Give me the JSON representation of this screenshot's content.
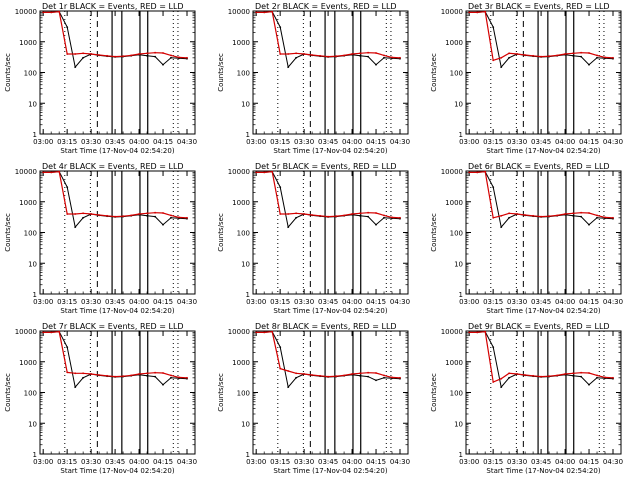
{
  "common": {
    "ylabel": "Counts/sec",
    "xlabel": "Start Time (17-Nov-04 02:54:20)",
    "ytick_labels": [
      "10000",
      "1000",
      "100",
      "10",
      "1"
    ],
    "xtick_labels": [
      "03:00",
      "03:15",
      "03:30",
      "03:45",
      "04:00",
      "04:15",
      "04:30"
    ],
    "colors": {
      "events": "#000000",
      "lld": "#d40000"
    }
  },
  "chart_data": [
    {
      "type": "line",
      "title": "Det 1r BLACK = Events, RED = LLD",
      "xlabel": "Start Time (17-Nov-04 02:54:20)",
      "ylabel": "Counts/sec",
      "yscale": "log",
      "ylim": [
        1,
        10000
      ],
      "xlim": [
        "02:58",
        "04:35"
      ],
      "x": [
        "03:00",
        "03:05",
        "03:10",
        "03:15",
        "03:20",
        "03:25",
        "03:30",
        "03:35",
        "03:40",
        "03:45",
        "03:50",
        "03:55",
        "04:00",
        "04:05",
        "04:10",
        "04:15",
        "04:20",
        "04:25",
        "04:30"
      ],
      "series": [
        {
          "name": "BLACK = Events",
          "values": [
            9000,
            9000,
            9500,
            3000,
            150,
            300,
            400,
            360,
            340,
            320,
            330,
            350,
            380,
            350,
            330,
            180,
            300,
            290,
            280
          ]
        },
        {
          "name": "RED = LLD",
          "values": [
            9000,
            9000,
            9500,
            400,
            400,
            420,
            400,
            370,
            350,
            330,
            340,
            360,
            400,
            420,
            440,
            430,
            360,
            310,
            300
          ]
        }
      ]
    },
    {
      "type": "line",
      "title": "Det 2r BLACK = Events, RED = LLD",
      "xlabel": "Start Time (17-Nov-04 02:54:20)",
      "ylabel": "Counts/sec",
      "yscale": "log",
      "ylim": [
        1,
        10000
      ],
      "xlim": [
        "02:58",
        "04:35"
      ],
      "x": [
        "03:00",
        "03:05",
        "03:10",
        "03:15",
        "03:20",
        "03:25",
        "03:30",
        "03:35",
        "03:40",
        "03:45",
        "03:50",
        "03:55",
        "04:00",
        "04:05",
        "04:10",
        "04:15",
        "04:20",
        "04:25",
        "04:30"
      ],
      "series": [
        {
          "name": "BLACK = Events",
          "values": [
            9000,
            9000,
            9500,
            3000,
            150,
            300,
            400,
            360,
            340,
            320,
            330,
            350,
            380,
            350,
            330,
            180,
            300,
            290,
            280
          ]
        },
        {
          "name": "RED = LLD",
          "values": [
            9000,
            9000,
            9500,
            400,
            400,
            420,
            400,
            370,
            350,
            330,
            340,
            360,
            400,
            420,
            440,
            430,
            360,
            310,
            300
          ]
        }
      ]
    },
    {
      "type": "line",
      "title": "Det 3r BLACK = Events, RED = LLD",
      "xlabel": "Start Time (17-Nov-04 02:54:20)",
      "ylabel": "Counts/sec",
      "yscale": "log",
      "ylim": [
        1,
        10000
      ],
      "xlim": [
        "02:58",
        "04:35"
      ],
      "x": [
        "03:00",
        "03:05",
        "03:10",
        "03:15",
        "03:20",
        "03:25",
        "03:30",
        "03:35",
        "03:40",
        "03:45",
        "03:50",
        "03:55",
        "04:00",
        "04:05",
        "04:10",
        "04:15",
        "04:20",
        "04:25",
        "04:30"
      ],
      "series": [
        {
          "name": "BLACK = Events",
          "values": [
            9000,
            9000,
            9500,
            3000,
            150,
            300,
            400,
            360,
            340,
            320,
            330,
            350,
            380,
            350,
            330,
            180,
            300,
            290,
            280
          ]
        },
        {
          "name": "RED = LLD",
          "values": [
            9000,
            9000,
            9500,
            250,
            300,
            420,
            400,
            370,
            350,
            330,
            340,
            360,
            400,
            420,
            440,
            430,
            360,
            310,
            300
          ]
        }
      ]
    },
    {
      "type": "line",
      "title": "Det 4r BLACK = Events, RED = LLD",
      "xlabel": "Start Time (17-Nov-04 02:54:20)",
      "ylabel": "Counts/sec",
      "yscale": "log",
      "ylim": [
        1,
        10000
      ],
      "xlim": [
        "02:58",
        "04:35"
      ],
      "x": [
        "03:00",
        "03:05",
        "03:10",
        "03:15",
        "03:20",
        "03:25",
        "03:30",
        "03:35",
        "03:40",
        "03:45",
        "03:50",
        "03:55",
        "04:00",
        "04:05",
        "04:10",
        "04:15",
        "04:20",
        "04:25",
        "04:30"
      ],
      "series": [
        {
          "name": "BLACK = Events",
          "values": [
            9000,
            9000,
            9500,
            3000,
            150,
            300,
            400,
            360,
            340,
            320,
            330,
            350,
            380,
            350,
            330,
            180,
            300,
            290,
            280
          ]
        },
        {
          "name": "RED = LLD",
          "values": [
            9000,
            9000,
            9500,
            400,
            400,
            420,
            400,
            370,
            350,
            330,
            340,
            360,
            400,
            420,
            440,
            430,
            360,
            310,
            300
          ]
        }
      ]
    },
    {
      "type": "line",
      "title": "Det 5r BLACK = Events, RED = LLD",
      "xlabel": "Start Time (17-Nov-04 02:54:20)",
      "ylabel": "Counts/sec",
      "yscale": "log",
      "ylim": [
        1,
        10000
      ],
      "xlim": [
        "02:58",
        "04:35"
      ],
      "x": [
        "03:00",
        "03:05",
        "03:10",
        "03:15",
        "03:20",
        "03:25",
        "03:30",
        "03:35",
        "03:40",
        "03:45",
        "03:50",
        "03:55",
        "04:00",
        "04:05",
        "04:10",
        "04:15",
        "04:20",
        "04:25",
        "04:30"
      ],
      "series": [
        {
          "name": "BLACK = Events",
          "values": [
            9000,
            9000,
            9500,
            3000,
            150,
            300,
            400,
            360,
            340,
            320,
            330,
            350,
            380,
            350,
            330,
            180,
            300,
            290,
            280
          ]
        },
        {
          "name": "RED = LLD",
          "values": [
            9000,
            9000,
            9500,
            400,
            400,
            420,
            400,
            370,
            350,
            330,
            340,
            360,
            400,
            420,
            440,
            430,
            360,
            310,
            300
          ]
        }
      ]
    },
    {
      "type": "line",
      "title": "Det 6r BLACK = Events, RED = LLD",
      "xlabel": "Start Time (17-Nov-04 02:54:20)",
      "ylabel": "Counts/sec",
      "yscale": "log",
      "ylim": [
        1,
        10000
      ],
      "xlim": [
        "02:58",
        "04:35"
      ],
      "x": [
        "03:00",
        "03:05",
        "03:10",
        "03:15",
        "03:20",
        "03:25",
        "03:30",
        "03:35",
        "03:40",
        "03:45",
        "03:50",
        "03:55",
        "04:00",
        "04:05",
        "04:10",
        "04:15",
        "04:20",
        "04:25",
        "04:30"
      ],
      "series": [
        {
          "name": "BLACK = Events",
          "values": [
            9000,
            9000,
            9500,
            3000,
            150,
            300,
            400,
            360,
            340,
            320,
            330,
            350,
            380,
            350,
            330,
            180,
            300,
            290,
            280
          ]
        },
        {
          "name": "RED = LLD",
          "values": [
            9000,
            9000,
            9500,
            300,
            350,
            420,
            400,
            370,
            350,
            330,
            340,
            360,
            400,
            420,
            440,
            430,
            360,
            310,
            300
          ]
        }
      ]
    },
    {
      "type": "line",
      "title": "Det 7r BLACK = Events, RED = LLD",
      "xlabel": "Start Time (17-Nov-04 02:54:20)",
      "ylabel": "Counts/sec",
      "yscale": "log",
      "ylim": [
        1,
        10000
      ],
      "xlim": [
        "02:58",
        "04:35"
      ],
      "x": [
        "03:00",
        "03:05",
        "03:10",
        "03:15",
        "03:20",
        "03:25",
        "03:30",
        "03:35",
        "03:40",
        "03:45",
        "03:50",
        "03:55",
        "04:00",
        "04:05",
        "04:10",
        "04:15",
        "04:20",
        "04:25",
        "04:30"
      ],
      "series": [
        {
          "name": "BLACK = Events",
          "values": [
            9000,
            9000,
            9500,
            3000,
            150,
            300,
            400,
            360,
            340,
            320,
            330,
            350,
            380,
            350,
            330,
            180,
            300,
            290,
            280
          ]
        },
        {
          "name": "RED = LLD",
          "values": [
            9000,
            9000,
            9500,
            450,
            420,
            420,
            400,
            370,
            350,
            330,
            340,
            360,
            400,
            420,
            440,
            430,
            360,
            310,
            300
          ]
        }
      ]
    },
    {
      "type": "line",
      "title": "Det 8r BLACK = Events, RED = LLD",
      "xlabel": "Start Time (17-Nov-04 02:54:20)",
      "ylabel": "Counts/sec",
      "yscale": "log",
      "ylim": [
        1,
        10000
      ],
      "xlim": [
        "02:58",
        "04:35"
      ],
      "x": [
        "03:00",
        "03:05",
        "03:10",
        "03:15",
        "03:20",
        "03:25",
        "03:30",
        "03:35",
        "03:40",
        "03:45",
        "03:50",
        "03:55",
        "04:00",
        "04:05",
        "04:10",
        "04:15",
        "04:20",
        "04:25",
        "04:30"
      ],
      "series": [
        {
          "name": "BLACK = Events",
          "values": [
            9000,
            9000,
            9500,
            3000,
            150,
            300,
            400,
            360,
            340,
            320,
            330,
            350,
            380,
            350,
            330,
            250,
            300,
            290,
            280
          ]
        },
        {
          "name": "RED = LLD",
          "values": [
            9000,
            9000,
            9500,
            600,
            500,
            420,
            400,
            370,
            350,
            330,
            340,
            360,
            400,
            420,
            440,
            430,
            360,
            310,
            300
          ]
        }
      ]
    },
    {
      "type": "line",
      "title": "Det 9r BLACK = Events, RED = LLD",
      "xlabel": "Start Time (17-Nov-04 02:54:20)",
      "ylabel": "Counts/sec",
      "yscale": "log",
      "ylim": [
        1,
        10000
      ],
      "xlim": [
        "02:58",
        "04:35"
      ],
      "x": [
        "03:00",
        "03:05",
        "03:10",
        "03:15",
        "03:20",
        "03:25",
        "03:30",
        "03:35",
        "03:40",
        "03:45",
        "03:50",
        "03:55",
        "04:00",
        "04:05",
        "04:10",
        "04:15",
        "04:20",
        "04:25",
        "04:30"
      ],
      "series": [
        {
          "name": "BLACK = Events",
          "values": [
            9000,
            9000,
            9500,
            3000,
            150,
            300,
            400,
            360,
            340,
            320,
            330,
            350,
            380,
            350,
            330,
            180,
            300,
            290,
            280
          ]
        },
        {
          "name": "RED = LLD",
          "values": [
            9000,
            9000,
            9500,
            220,
            280,
            420,
            400,
            370,
            350,
            330,
            340,
            360,
            400,
            420,
            440,
            430,
            360,
            310,
            300
          ]
        }
      ]
    }
  ]
}
